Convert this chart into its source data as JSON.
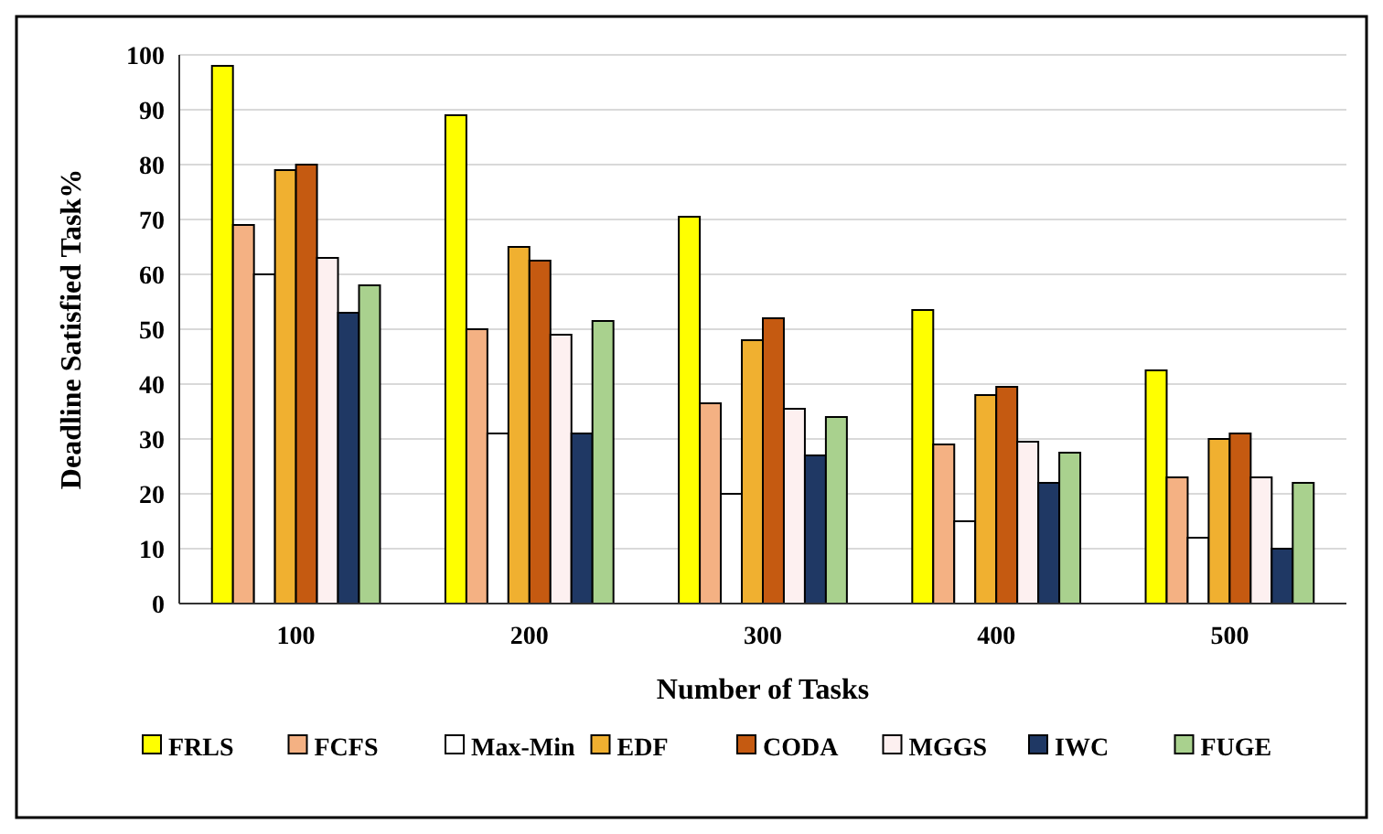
{
  "chart_data": {
    "type": "bar",
    "xlabel": "Number of Tasks",
    "ylabel": "Deadline Satisfied Task%",
    "categories": [
      "100",
      "200",
      "300",
      "400",
      "500"
    ],
    "series": [
      {
        "name": "FRLS",
        "color": "#ffff00",
        "values": [
          98,
          89,
          70.5,
          53.5,
          42.5
        ]
      },
      {
        "name": "FCFS",
        "color": "#f4b183",
        "values": [
          69,
          50,
          36.5,
          29,
          23
        ]
      },
      {
        "name": "Max-Min",
        "color": "#ffffff",
        "values": [
          60,
          31,
          20,
          15,
          12
        ]
      },
      {
        "name": "EDF",
        "color": "#f0b030",
        "values": [
          79,
          65,
          48,
          38,
          30
        ]
      },
      {
        "name": "CODA",
        "color": "#c55a11",
        "values": [
          80,
          62.5,
          52,
          39.5,
          31
        ]
      },
      {
        "name": "MGGS",
        "color": "#fdf0f0",
        "values": [
          63,
          49,
          35.5,
          29.5,
          23
        ]
      },
      {
        "name": "IWC",
        "color": "#1f3864",
        "values": [
          53,
          31,
          27,
          22,
          10
        ]
      },
      {
        "name": "FUGE",
        "color": "#a9d18e",
        "values": [
          58,
          51.5,
          34,
          27.5,
          22
        ]
      }
    ],
    "ylim": [
      0,
      100
    ],
    "yticks": [
      0,
      10,
      20,
      30,
      40,
      50,
      60,
      70,
      80,
      90,
      100
    ],
    "grid": "y",
    "legend": "bottom"
  }
}
